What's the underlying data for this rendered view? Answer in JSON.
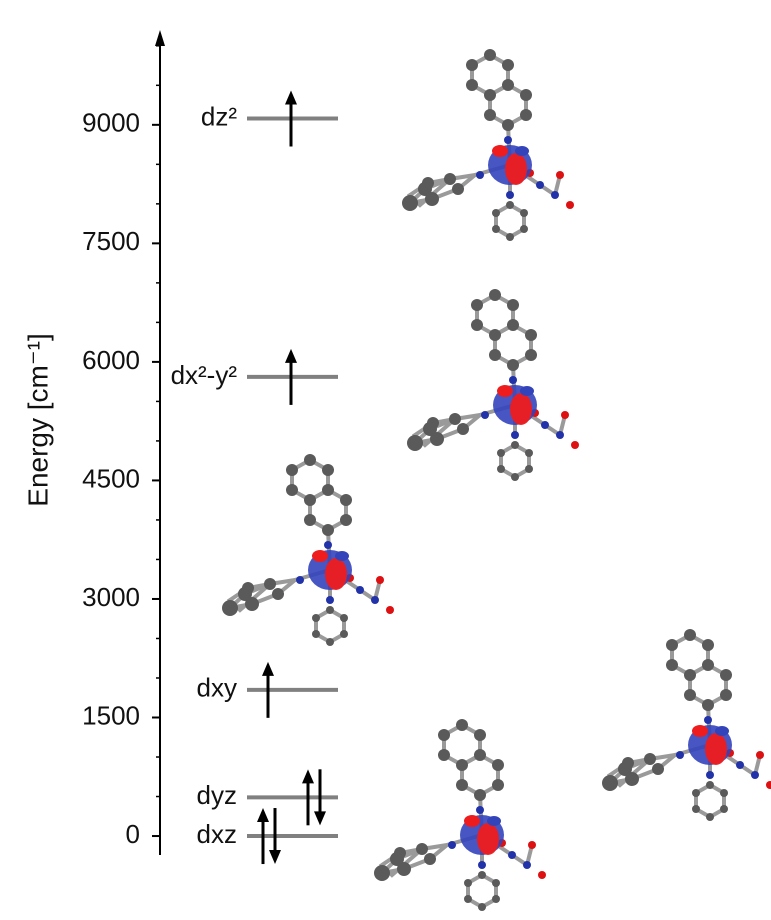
{
  "chart_data": {
    "type": "energy-levels",
    "y_label": "Energy [cm⁻¹]",
    "ylim": [
      -240,
      10200
    ],
    "yticks": [
      0,
      1500,
      3000,
      4500,
      6000,
      7500,
      9000
    ],
    "yminor_ticks": [
      500,
      1000,
      2000,
      2500,
      3500,
      4000,
      5000,
      5500,
      6500,
      7000,
      8000,
      8500,
      9500,
      10000
    ],
    "level_color": "#808080",
    "levels": [
      {
        "label": "dz²",
        "energy": 9080,
        "electrons": 1
      },
      {
        "label": "dx²-y²",
        "energy": 5810,
        "electrons": 1
      },
      {
        "label": "dxy",
        "energy": 1850,
        "electrons": 1
      },
      {
        "label": "dyz",
        "energy": 490,
        "electrons": 2
      },
      {
        "label": "dxz",
        "energy": 0,
        "electrons": 2
      }
    ]
  }
}
